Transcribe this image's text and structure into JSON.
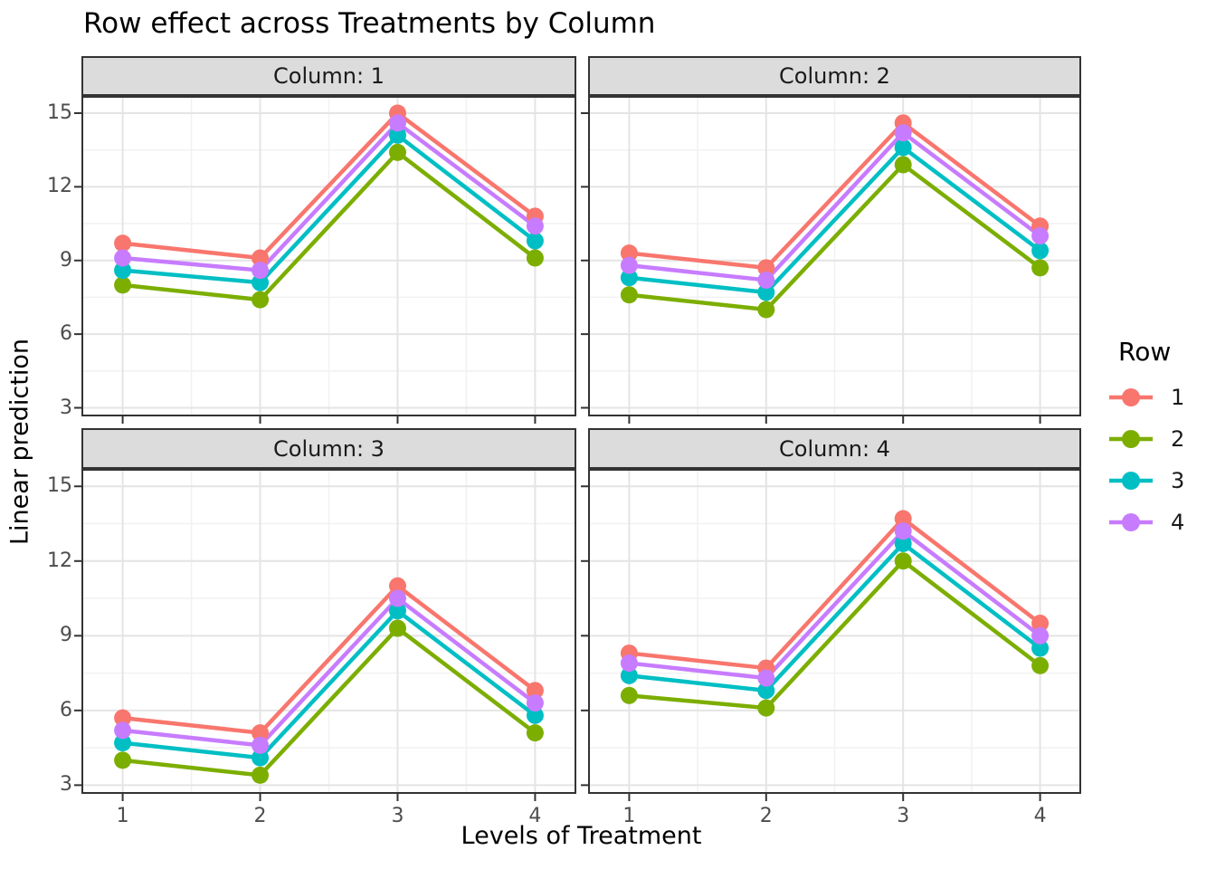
{
  "title": "Row effect across Treatments by Column",
  "axes": {
    "x": {
      "label": "Levels of Treatment",
      "ticks": [
        "1",
        "2",
        "3",
        "4"
      ]
    },
    "y": {
      "label": "Linear prediction",
      "ticks": [
        "3",
        "6",
        "9",
        "12",
        "15"
      ]
    }
  },
  "legend": {
    "title": "Row",
    "position": "right",
    "entries": [
      {
        "label": "1",
        "color": "#F8766D"
      },
      {
        "label": "2",
        "color": "#7CAE00"
      },
      {
        "label": "3",
        "color": "#00BFC4"
      },
      {
        "label": "4",
        "color": "#C77CFF"
      }
    ]
  },
  "colors": {
    "strip_bg": "#DCDCDC",
    "panel_border": "#333333",
    "grid_major": "#E4E4E4",
    "grid_minor": "#F1F1F1",
    "tick_mark": "#333333",
    "tick_label": "#4D4D4D"
  },
  "chart_data": {
    "type": "line",
    "title": "Row effect across Treatments by Column",
    "xlabel": "Levels of Treatment",
    "ylabel": "Linear prediction",
    "facet_variable": "Column",
    "group_variable": "Row",
    "x": [
      1,
      2,
      3,
      4
    ],
    "xlim": [
      0.7,
      4.3
    ],
    "ylim": [
      2.65,
      15.7
    ],
    "yticks": [
      3,
      6,
      9,
      12,
      15
    ],
    "yticks_minor": [
      4.5,
      7.5,
      10.5,
      13.5
    ],
    "xticks_minor": [
      1.5,
      2.5,
      3.5
    ],
    "grid": true,
    "legend_title": "Row",
    "legend_position": "right",
    "facets": [
      {
        "label": "Column: 1",
        "series": [
          {
            "name": "1",
            "color": "#F8766D",
            "values": [
              9.7,
              9.1,
              15.0,
              10.8
            ]
          },
          {
            "name": "2",
            "color": "#7CAE00",
            "values": [
              8.0,
              7.4,
              13.4,
              9.1
            ]
          },
          {
            "name": "3",
            "color": "#00BFC4",
            "values": [
              8.6,
              8.1,
              14.1,
              9.8
            ]
          },
          {
            "name": "4",
            "color": "#C77CFF",
            "values": [
              9.1,
              8.6,
              14.6,
              10.4
            ]
          }
        ]
      },
      {
        "label": "Column: 2",
        "series": [
          {
            "name": "1",
            "color": "#F8766D",
            "values": [
              9.3,
              8.7,
              14.6,
              10.4
            ]
          },
          {
            "name": "2",
            "color": "#7CAE00",
            "values": [
              7.6,
              7.0,
              12.9,
              8.7
            ]
          },
          {
            "name": "3",
            "color": "#00BFC4",
            "values": [
              8.3,
              7.7,
              13.6,
              9.4
            ]
          },
          {
            "name": "4",
            "color": "#C77CFF",
            "values": [
              8.8,
              8.2,
              14.2,
              10.0
            ]
          }
        ]
      },
      {
        "label": "Column: 3",
        "series": [
          {
            "name": "1",
            "color": "#F8766D",
            "values": [
              5.7,
              5.1,
              11.0,
              6.8
            ]
          },
          {
            "name": "2",
            "color": "#7CAE00",
            "values": [
              4.0,
              3.4,
              9.3,
              5.1
            ]
          },
          {
            "name": "3",
            "color": "#00BFC4",
            "values": [
              4.7,
              4.1,
              10.0,
              5.8
            ]
          },
          {
            "name": "4",
            "color": "#C77CFF",
            "values": [
              5.2,
              4.6,
              10.5,
              6.3
            ]
          }
        ]
      },
      {
        "label": "Column: 4",
        "series": [
          {
            "name": "1",
            "color": "#F8766D",
            "values": [
              8.3,
              7.7,
              13.7,
              9.5
            ]
          },
          {
            "name": "2",
            "color": "#7CAE00",
            "values": [
              6.6,
              6.1,
              12.0,
              7.8
            ]
          },
          {
            "name": "3",
            "color": "#00BFC4",
            "values": [
              7.4,
              6.8,
              12.7,
              8.5
            ]
          },
          {
            "name": "4",
            "color": "#C77CFF",
            "values": [
              7.9,
              7.3,
              13.2,
              9.0
            ]
          }
        ]
      }
    ]
  }
}
